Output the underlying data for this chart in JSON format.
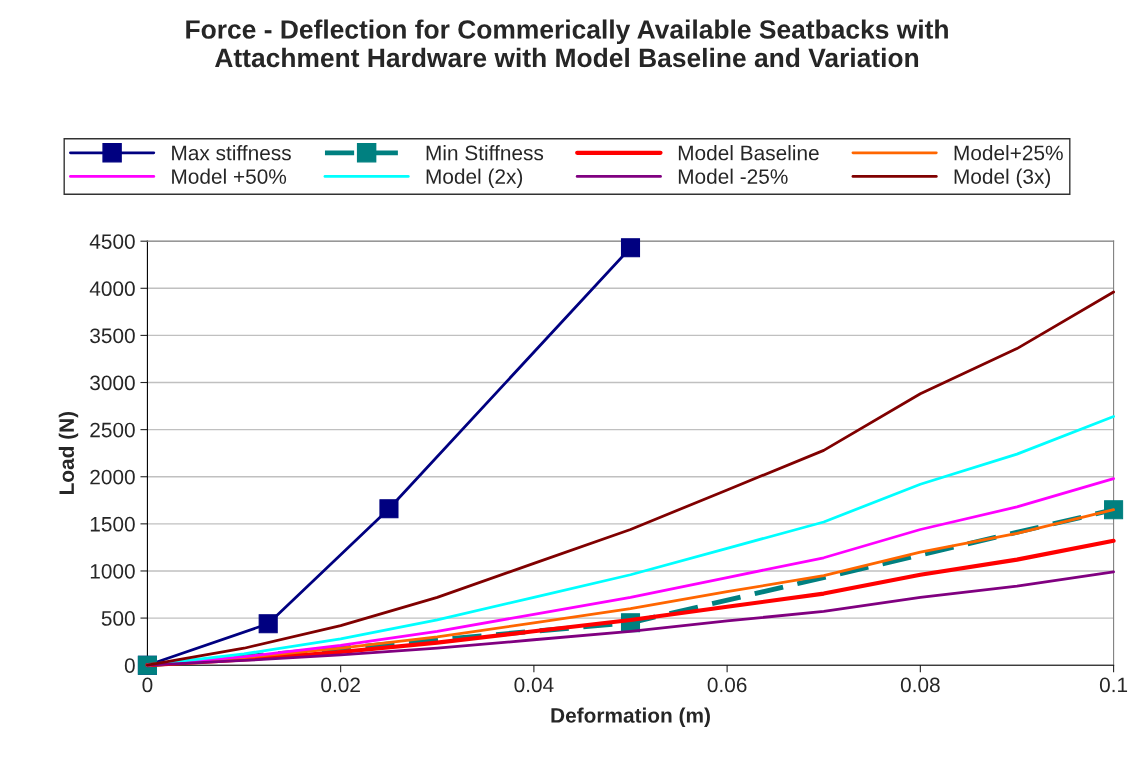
{
  "chart_data": {
    "type": "line",
    "title": "Force - Deflection for Commerically Available Seatbacks with\nAttachment Hardware with Model Baseline and Variation",
    "xlabel": "Deformation (m)",
    "ylabel": "Load (N)",
    "x": [
      0,
      0.01,
      0.02,
      0.03,
      0.04,
      0.05,
      0.06,
      0.07,
      0.08,
      0.09,
      0.1
    ],
    "series": [
      {
        "name": "Max stiffness",
        "color": "#000080",
        "x": [
          0,
          0.0125,
          0.025,
          0.05
        ],
        "values": [
          0,
          440,
          1660,
          4430
        ],
        "marker": "square",
        "line_style": "solid"
      },
      {
        "name": "Min Stiffness",
        "color": "#008080",
        "x": [
          0,
          0.05,
          0.1
        ],
        "values": [
          0,
          450,
          1650
        ],
        "marker": "square",
        "line_style": "dashed"
      },
      {
        "name": "Model Baseline",
        "color": "#ff0000",
        "values": [
          0,
          60,
          140,
          240,
          360,
          480,
          620,
          760,
          960,
          1120,
          1320
        ]
      },
      {
        "name": "Model+25%",
        "color": "#ff6600",
        "values": [
          0,
          80,
          180,
          300,
          450,
          600,
          780,
          950,
          1200,
          1400,
          1650
        ]
      },
      {
        "name": "Model +50%",
        "color": "#ff00ff",
        "values": [
          0,
          90,
          210,
          360,
          540,
          720,
          930,
          1140,
          1440,
          1680,
          1980
        ]
      },
      {
        "name": "Model (2x)",
        "color": "#00ffff",
        "values": [
          0,
          120,
          280,
          480,
          720,
          960,
          1240,
          1520,
          1920,
          2240,
          2640
        ]
      },
      {
        "name": "Model -25%",
        "color": "#800080",
        "values": [
          0,
          50,
          110,
          180,
          270,
          360,
          470,
          570,
          720,
          840,
          990
        ]
      },
      {
        "name": "Model (3x)",
        "color": "#800000",
        "values": [
          0,
          180,
          420,
          720,
          1080,
          1440,
          1860,
          2280,
          2880,
          3360,
          3960
        ]
      }
    ],
    "xlim": [
      0,
      0.1
    ],
    "xticks": [
      0,
      0.02,
      0.04,
      0.06,
      0.08,
      0.1
    ],
    "ylim": [
      0,
      4500
    ],
    "yticks": [
      0,
      500,
      1000,
      1500,
      2000,
      2500,
      3000,
      3500,
      4000,
      4500
    ],
    "grid": "y",
    "legend": "top",
    "marker": "none",
    "line_style": "solid"
  }
}
